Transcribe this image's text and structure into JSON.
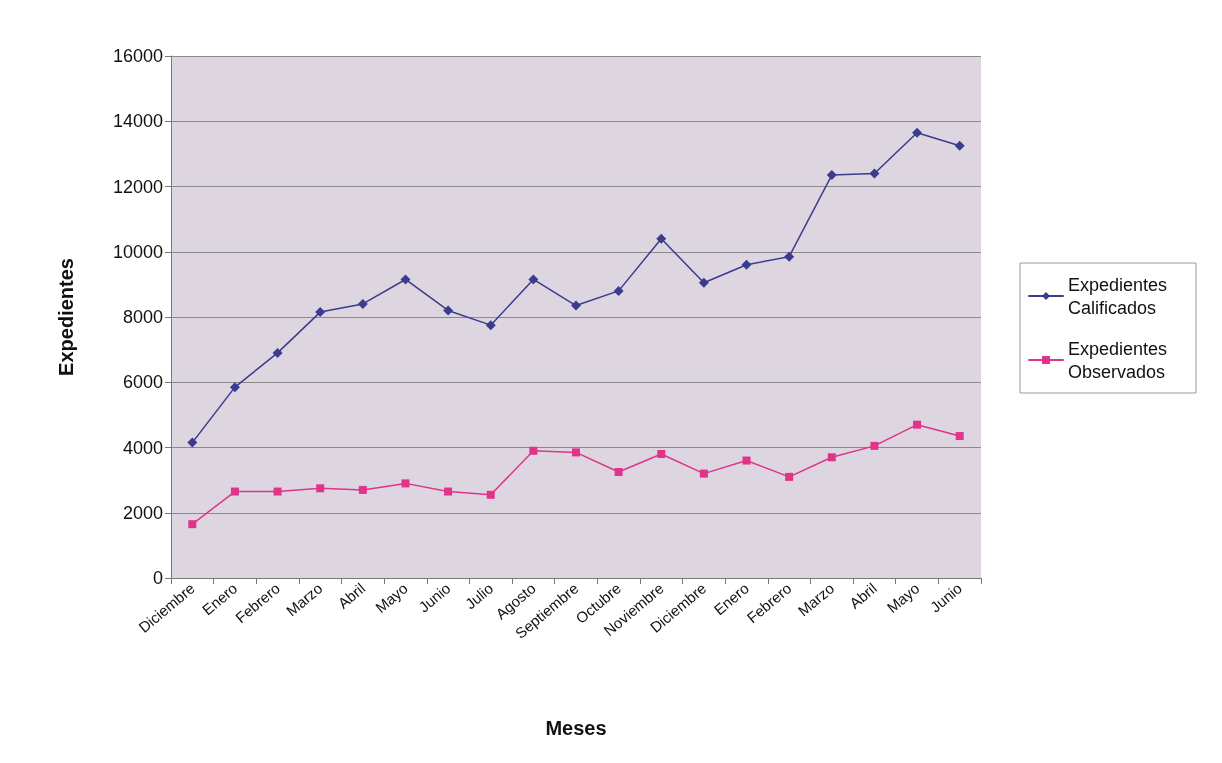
{
  "chart_data": {
    "type": "line",
    "xlabel": "Meses",
    "ylabel": "Expedientes",
    "categories": [
      "Diciembre",
      "Enero",
      "Febrero",
      "Marzo",
      "Abril",
      "Mayo",
      "Junio",
      "Julio",
      "Agosto",
      "Septiembre",
      "Octubre",
      "Noviembre",
      "Diciembre",
      "Enero",
      "Febrero",
      "Marzo",
      "Abril",
      "Mayo",
      "Junio"
    ],
    "series": [
      {
        "name": "Expedientes Calificados",
        "color": "#3b3b8f",
        "marker": "diamond",
        "values": [
          4150,
          5850,
          6900,
          8150,
          8400,
          9150,
          8200,
          7750,
          9150,
          8350,
          8800,
          10400,
          9050,
          9600,
          9850,
          12350,
          12400,
          13650,
          13250
        ]
      },
      {
        "name": "Expedientes Observados",
        "color": "#e0338a",
        "marker": "square",
        "values": [
          1650,
          2650,
          2650,
          2750,
          2700,
          2900,
          2650,
          2550,
          3900,
          3850,
          3250,
          3800,
          3200,
          3600,
          3100,
          3700,
          4050,
          4700,
          4350
        ]
      }
    ],
    "ylim": [
      0,
      16000
    ],
    "yticks": [
      0,
      2000,
      4000,
      6000,
      8000,
      10000,
      12000,
      14000,
      16000
    ],
    "grid": "y",
    "legend": "right",
    "line_style": "solid"
  }
}
